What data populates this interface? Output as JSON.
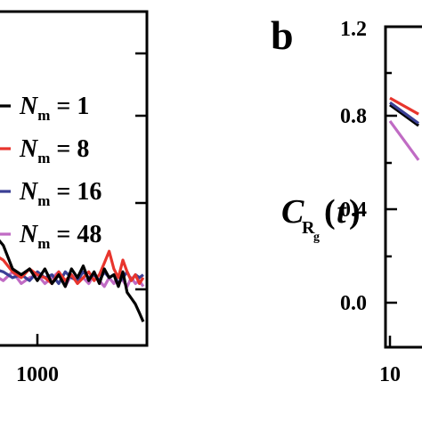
{
  "colors": {
    "black": "#000000",
    "red": "#e8352d",
    "blue": "#3a3f95",
    "purple": "#c06bc4"
  },
  "left_panel": {
    "x_tick_labels": [
      "1000"
    ],
    "legend": [
      {
        "var": "N",
        "sub": "m",
        "rest": " = 1",
        "color": "black"
      },
      {
        "var": "N",
        "sub": "m",
        "rest": " = 8",
        "color": "red"
      },
      {
        "var": "N",
        "sub": "m",
        "rest": " = 16",
        "color": "blue"
      },
      {
        "var": "N",
        "sub": "m",
        "rest": " = 48",
        "color": "purple"
      }
    ]
  },
  "right_panel": {
    "letter": "b",
    "ylabel_main": "C",
    "ylabel_sub": "R",
    "ylabel_subsub": "g",
    "ylabel_paren_open": "(",
    "ylabel_var": "t",
    "ylabel_paren_close": ")",
    "y_tick_labels": [
      "1.2",
      "0.8",
      "0.4",
      "0.0"
    ],
    "x_tick_labels": [
      "10"
    ]
  },
  "chart_data": [
    {
      "type": "line",
      "panel": "a (cropped)",
      "x_scale": "log",
      "series": [
        {
          "name": "N_m = 1",
          "color": "black",
          "x": [
            650,
            700,
            750,
            800,
            850,
            900,
            950,
            1000,
            1050,
            1100,
            1150,
            1200,
            1250,
            1300,
            1350,
            1400,
            1450,
            1500,
            1550,
            1600,
            1650,
            1700,
            1750,
            1800,
            1850,
            1900,
            1950,
            2000
          ],
          "y": [
            0.52,
            0.55,
            0.62,
            0.58,
            0.5,
            0.48,
            0.5,
            0.46,
            0.5,
            0.45,
            0.48,
            0.44,
            0.5,
            0.47,
            0.51,
            0.46,
            0.49,
            0.45,
            0.5,
            0.47,
            0.48,
            0.44,
            0.49,
            0.42,
            0.4,
            0.38,
            0.35,
            0.32
          ]
        },
        {
          "name": "N_m = 8",
          "color": "red",
          "x": [
            650,
            700,
            750,
            800,
            850,
            900,
            950,
            1000,
            1050,
            1100,
            1150,
            1200,
            1250,
            1300,
            1350,
            1400,
            1450,
            1500,
            1550,
            1600,
            1650,
            1700,
            1750,
            1800,
            1850,
            1900,
            1950,
            2000
          ],
          "y": [
            0.5,
            0.52,
            0.55,
            0.53,
            0.49,
            0.47,
            0.5,
            0.48,
            0.47,
            0.45,
            0.49,
            0.46,
            0.48,
            0.45,
            0.47,
            0.49,
            0.46,
            0.48,
            0.52,
            0.56,
            0.5,
            0.47,
            0.53,
            0.49,
            0.46,
            0.48,
            0.45,
            0.47
          ]
        },
        {
          "name": "N_m = 16",
          "color": "blue",
          "x": [
            650,
            700,
            750,
            800,
            850,
            900,
            950,
            1000,
            1050,
            1100,
            1150,
            1200,
            1250,
            1300,
            1350,
            1400,
            1450,
            1500,
            1550,
            1600,
            1650,
            1700,
            1750,
            1800,
            1850,
            1900,
            1950,
            2000
          ],
          "y": [
            0.48,
            0.49,
            0.5,
            0.49,
            0.47,
            0.48,
            0.46,
            0.49,
            0.47,
            0.48,
            0.45,
            0.49,
            0.47,
            0.46,
            0.49,
            0.47,
            0.48,
            0.46,
            0.49,
            0.47,
            0.48,
            0.45,
            0.47,
            0.49,
            0.46,
            0.48,
            0.47,
            0.48
          ]
        },
        {
          "name": "N_m = 48",
          "color": "purple",
          "x": [
            650,
            700,
            750,
            800,
            850,
            900,
            950,
            1000,
            1050,
            1100,
            1150,
            1200,
            1250,
            1300,
            1350,
            1400,
            1450,
            1500,
            1550,
            1600,
            1650,
            1700,
            1750,
            1800,
            1850,
            1900,
            1950,
            2000
          ],
          "y": [
            0.49,
            0.47,
            0.48,
            0.46,
            0.49,
            0.45,
            0.47,
            0.48,
            0.45,
            0.47,
            0.49,
            0.44,
            0.48,
            0.46,
            0.47,
            0.45,
            0.48,
            0.46,
            0.44,
            0.47,
            0.45,
            0.48,
            0.46,
            0.44,
            0.47,
            0.45,
            0.46,
            0.44
          ]
        }
      ]
    },
    {
      "type": "line",
      "panel": "b (cropped)",
      "x_scale": "log",
      "ylim": [
        0.0,
        1.2
      ],
      "series": [
        {
          "name": "N_m = 1",
          "color": "black",
          "x": [
            10,
            14
          ],
          "y": [
            0.86,
            0.77
          ]
        },
        {
          "name": "N_m = 8",
          "color": "red",
          "x": [
            10,
            14
          ],
          "y": [
            0.89,
            0.82
          ]
        },
        {
          "name": "N_m = 16",
          "color": "blue",
          "x": [
            10,
            14
          ],
          "y": [
            0.87,
            0.78
          ]
        },
        {
          "name": "N_m = 48",
          "color": "purple",
          "x": [
            10,
            14
          ],
          "y": [
            0.79,
            0.62
          ]
        }
      ]
    }
  ]
}
